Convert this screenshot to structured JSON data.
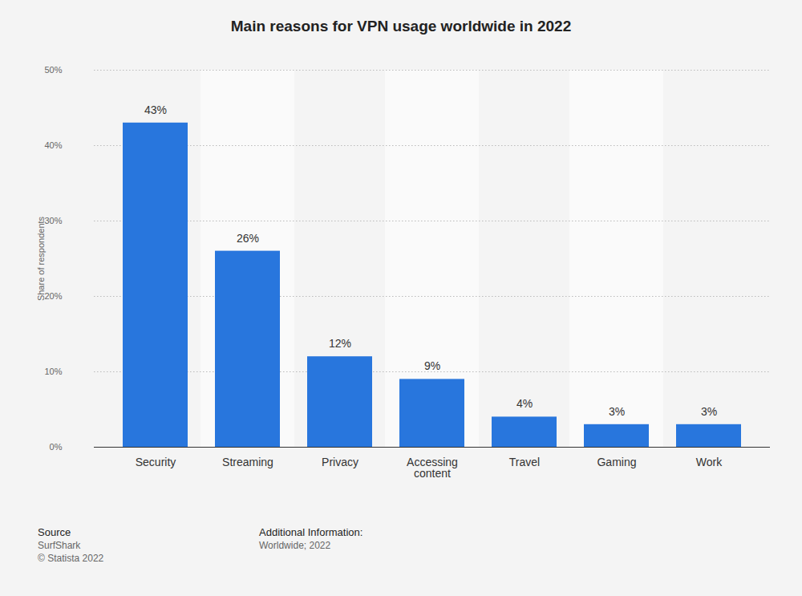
{
  "chart_data": {
    "type": "bar",
    "title": "Main reasons for VPN usage worldwide in 2022",
    "y_label": "Share of respondents",
    "categories": [
      "Security",
      "Streaming",
      "Privacy",
      "Accessing content",
      "Travel",
      "Gaming",
      "Work"
    ],
    "values": [
      43,
      26,
      12,
      9,
      4,
      3,
      3
    ],
    "value_labels": [
      "43%",
      "26%",
      "12%",
      "9%",
      "4%",
      "3%",
      "3%"
    ],
    "color": "#2876dd",
    "ylim": [
      0,
      50
    ],
    "yticks": [
      {
        "value": 0,
        "label": "0%"
      },
      {
        "value": 10,
        "label": "10%"
      },
      {
        "value": 20,
        "label": "20%"
      },
      {
        "value": 30,
        "label": "30%"
      },
      {
        "value": 40,
        "label": "40%"
      },
      {
        "value": 50,
        "label": "50%"
      }
    ],
    "grid": true,
    "data_labels": true
  },
  "footer": {
    "source_title": "Source",
    "source": [
      "SurfShark",
      "© Statista 2022"
    ],
    "info_title": "Additional Information:",
    "info": [
      "Worldwide; 2022"
    ]
  }
}
